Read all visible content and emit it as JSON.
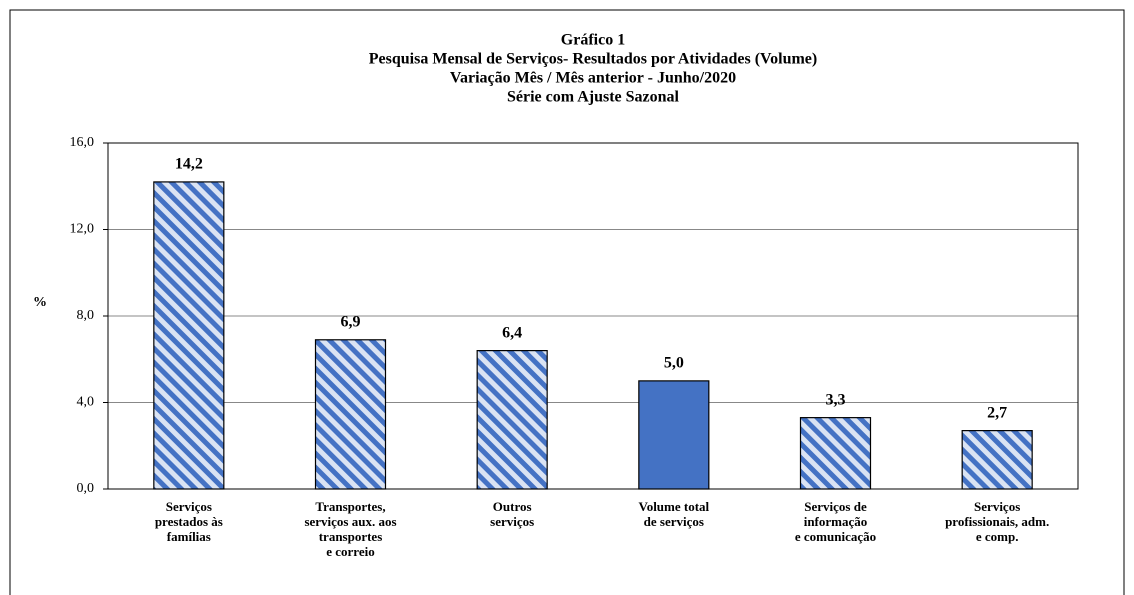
{
  "chart_data": {
    "type": "bar",
    "title": [
      "Gráfico 1",
      "Pesquisa Mensal de Serviços- Resultados por Atividades (Volume)",
      "Variação Mês / Mês anterior - Junho/2020",
      "Série com Ajuste Sazonal"
    ],
    "ylabel": "%",
    "categories": [
      "Serviços\nprestados às\nfamílias",
      "Transportes,\nserviços aux. aos\ntransportes\ne correio",
      "Outros\nserviços",
      "Volume total\nde serviços",
      "Serviços de\ninformação\ne comunicação",
      "Serviços\nprofissionais, adm.\ne comp."
    ],
    "values": [
      14.2,
      6.9,
      6.4,
      5.0,
      3.3,
      2.7
    ],
    "value_labels": [
      "14,2",
      "6,9",
      "6,4",
      "5,0",
      "3,3",
      "2,7"
    ],
    "color": "#4472c4",
    "bar_styles": [
      "hatched",
      "hatched",
      "hatched",
      "solid",
      "hatched",
      "hatched"
    ],
    "ylim": [
      0,
      16
    ],
    "yticks": [
      {
        "value": 0,
        "label": "0,0"
      },
      {
        "value": 4,
        "label": "4,0"
      },
      {
        "value": 8,
        "label": "8,0"
      },
      {
        "value": 12,
        "label": "12,0"
      },
      {
        "value": 16,
        "label": "16,0"
      }
    ],
    "grid": true
  }
}
